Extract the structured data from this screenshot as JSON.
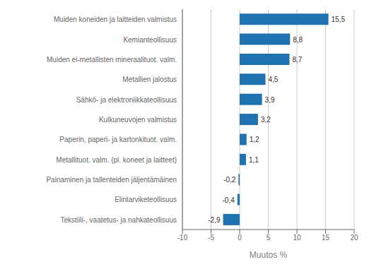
{
  "chart_data": {
    "type": "bar",
    "orientation": "horizontal",
    "categories": [
      "Tekstiili-, vaatetus- ja nahkateollisuus",
      "Elintarviketeollisuus",
      "Painaminen ja tallenteiden jäljentämäinen",
      "Metallituot. valm. (pl. koneet ja laitteet)",
      "Paperin, paperi- ja kartonkituot. valm.",
      "Kulkuneuvojen valmistus",
      "Sähkö- ja elektroniikkateollisuus",
      "Metallien jalostus",
      "Muiden ei-metallisten mineraalituot. valm.",
      "Kemianteollisuus",
      "Muiden koneiden ja laitteiden valmistus"
    ],
    "values": [
      -2.9,
      -0.4,
      -0.2,
      1.1,
      1.2,
      3.2,
      3.9,
      4.5,
      8.7,
      8.8,
      15.5
    ],
    "value_labels": [
      "-2,9",
      "-0,4",
      "-0,2",
      "1,1",
      "1,2",
      "3,2",
      "3,9",
      "4,5",
      "8,7",
      "8,8",
      "15,5"
    ],
    "data_labels": true,
    "color": "#1f72b0",
    "xlabel": "Muutos %",
    "xlim": [
      -10,
      20
    ],
    "xticks": [
      -10,
      -5,
      0,
      5,
      10,
      15,
      20
    ],
    "grid": true
  }
}
